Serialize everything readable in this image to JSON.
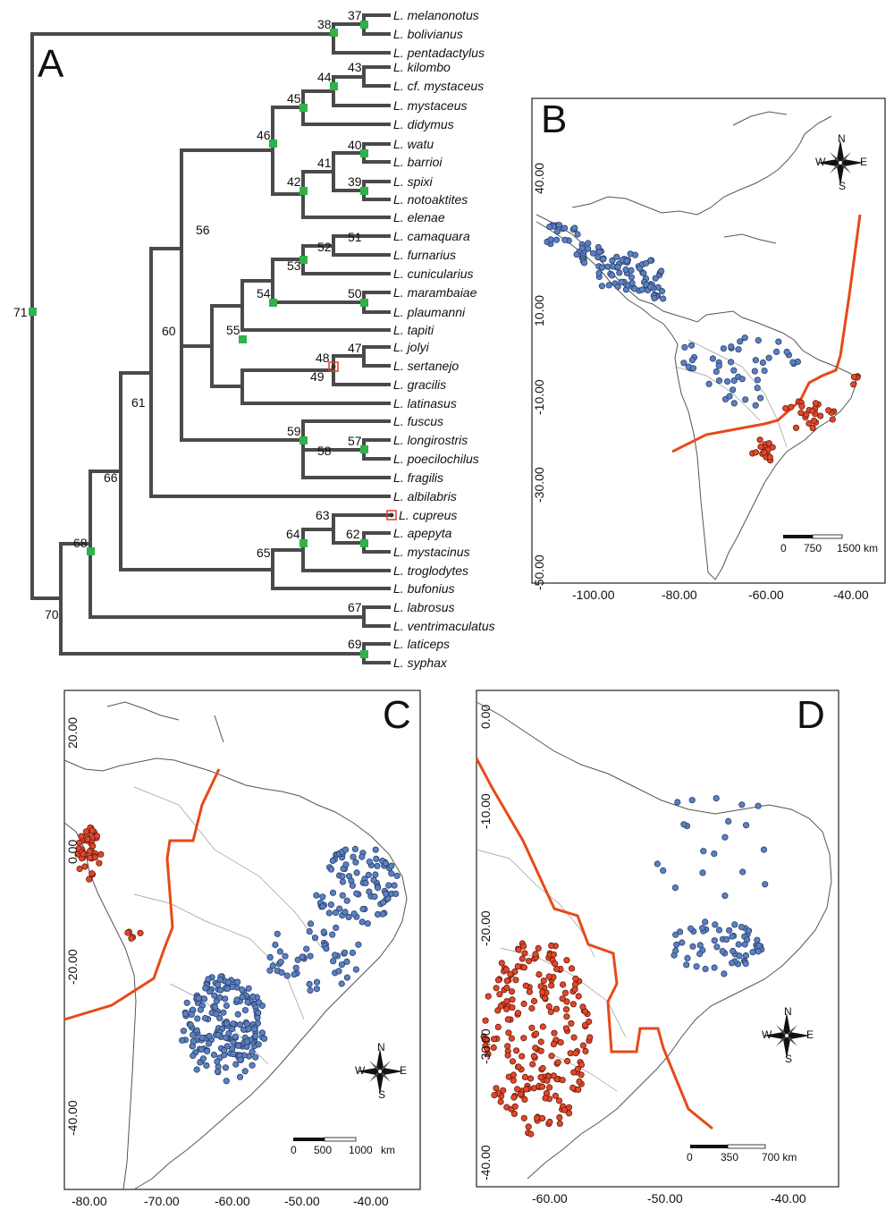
{
  "colors": {
    "blue": "#5a80c4",
    "red": "#e0482a",
    "line": "#e64a19",
    "node_square": "#2db34a",
    "node_box": "#e03b2b",
    "branch": "#4a4a4a"
  },
  "panels": {
    "a": "A",
    "b": "B",
    "c": "C",
    "d": "D"
  },
  "tree": {
    "taxa": [
      "L. melanonotus",
      "L. bolivianus",
      "L. pentadactylus",
      "L. kilombo",
      "L. cf. mystaceus",
      "L. mystaceus",
      "L. didymus",
      "L. watu",
      "L. barrioi",
      "L. spixi",
      "L. notoaktites",
      "L. elenae",
      "L. camaquara",
      "L. furnarius",
      "L. cunicularius",
      "L. marambaiae",
      "L. plaumanni",
      "L. tapiti",
      "L. jolyi",
      "L. sertanejo",
      "L. gracilis",
      "L. latinasus",
      "L. fuscus",
      "L. longirostris",
      "L. poecilochilus",
      "L. fragilis",
      "L. albilabris",
      "L. cupreus",
      "L. apepyta",
      "L. mystacinus",
      "L. troglodytes",
      "L. bufonius",
      "L. labrosus",
      "L. ventrimaculatus",
      "L. laticeps",
      "L. syphax"
    ],
    "nodes": [
      "37",
      "38",
      "43",
      "44",
      "45",
      "46",
      "40",
      "41",
      "39",
      "42",
      "56",
      "52",
      "51",
      "53",
      "54",
      "50",
      "55",
      "48",
      "47",
      "49",
      "60",
      "61",
      "59",
      "57",
      "58",
      "63",
      "66",
      "64",
      "62",
      "65",
      "68",
      "67",
      "70",
      "69",
      "71"
    ]
  },
  "map_b": {
    "y_ticks": [
      "40.00",
      "10.00",
      "-10.00",
      "-30.00",
      "-50.00"
    ],
    "x_ticks": [
      "-100.00",
      "-80.00",
      "-60.00",
      "-40.00"
    ],
    "scale": [
      "0",
      "750",
      "1500 km"
    ]
  },
  "map_c": {
    "y_ticks": [
      "20.00",
      "0.00",
      "-20.00",
      "-40.00"
    ],
    "x_ticks": [
      "-80.00",
      "-70.00",
      "-60.00",
      "-50.00",
      "-40.00"
    ],
    "scale": [
      "0",
      "500",
      "1000",
      "km"
    ]
  },
  "map_d": {
    "y_ticks": [
      "0.00",
      "-10.00",
      "-20.00",
      "-30.00",
      "-40.00"
    ],
    "x_ticks": [
      "-60.00",
      "-50.00",
      "-40.00"
    ],
    "scale": [
      "0",
      "350",
      "700 km"
    ]
  },
  "compass": {
    "n": "N",
    "s": "S",
    "e": "E",
    "w": "W"
  }
}
